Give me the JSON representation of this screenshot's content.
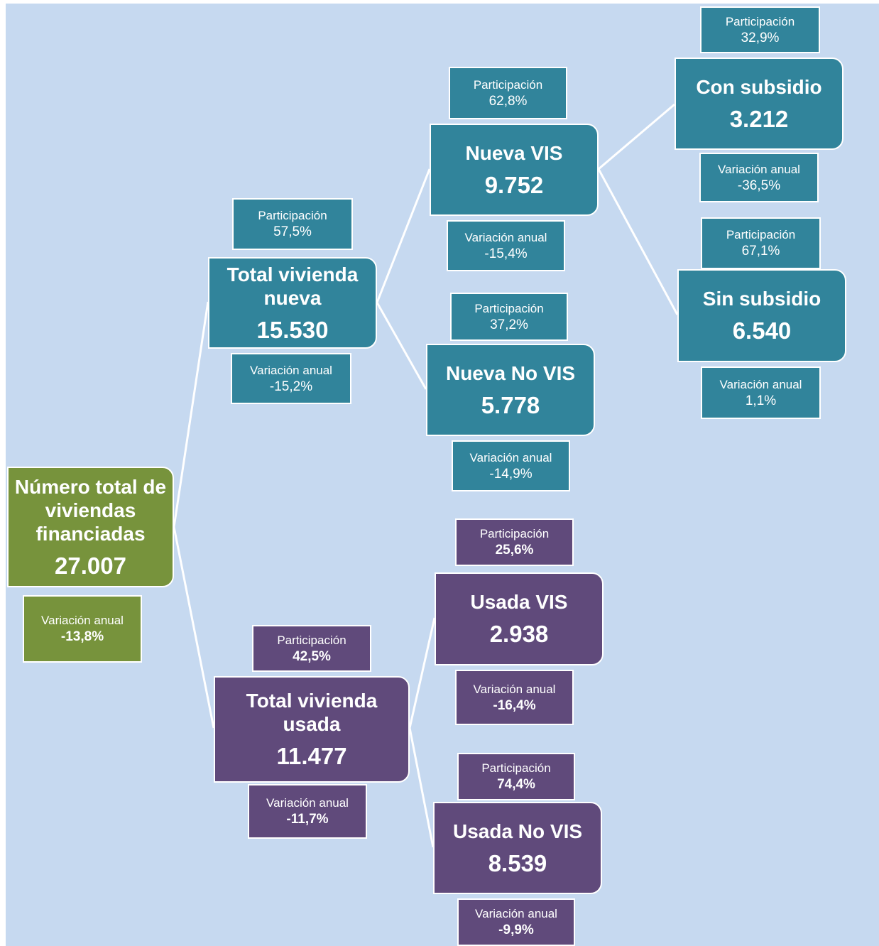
{
  "nodes": [
    {
      "title": "Número total de viviendas financiadas",
      "value": "27.007",
      "change": {
        "label": "Variación anual",
        "value": "-13,8%"
      }
    },
    {
      "title": "Total vivienda nueva",
      "value": "15.530",
      "share": {
        "label": "Participación",
        "value": "57,5%"
      },
      "change": {
        "label": "Variación anual",
        "value": "-15,2%"
      }
    },
    {
      "title": "Nueva VIS",
      "value": "9.752",
      "share": {
        "label": "Participación",
        "value": "62,8%"
      },
      "change": {
        "label": "Variación anual",
        "value": "-15,4%"
      }
    },
    {
      "title": "Nueva No VIS",
      "value": "5.778",
      "share": {
        "label": "Participación",
        "value": "37,2%"
      },
      "change": {
        "label": "Variación anual",
        "value": "-14,9%"
      }
    },
    {
      "title": "Con subsidio",
      "value": "3.212",
      "share": {
        "label": "Participación",
        "value": "32,9%"
      },
      "change": {
        "label": "Variación anual",
        "value": "-36,5%"
      }
    },
    {
      "title": "Sin subsidio",
      "value": "6.540",
      "share": {
        "label": "Participación",
        "value": "67,1%"
      },
      "change": {
        "label": "Variación anual",
        "value": "1,1%"
      }
    },
    {
      "title": "Total vivienda usada",
      "value": "11.477",
      "share": {
        "label": "Participación",
        "value": "42,5%"
      },
      "change": {
        "label": "Variación anual",
        "value": "-11,7%"
      }
    },
    {
      "title": "Usada VIS",
      "value": "2.938",
      "share": {
        "label": "Participación",
        "value": "25,6%"
      },
      "change": {
        "label": "Variación anual",
        "value": "-16,4%"
      }
    },
    {
      "title": "Usada No VIS",
      "value": "8.539",
      "share": {
        "label": "Participación",
        "value": "74,4%"
      },
      "change": {
        "label": "Variación anual",
        "value": "-9,9%"
      }
    }
  ]
}
